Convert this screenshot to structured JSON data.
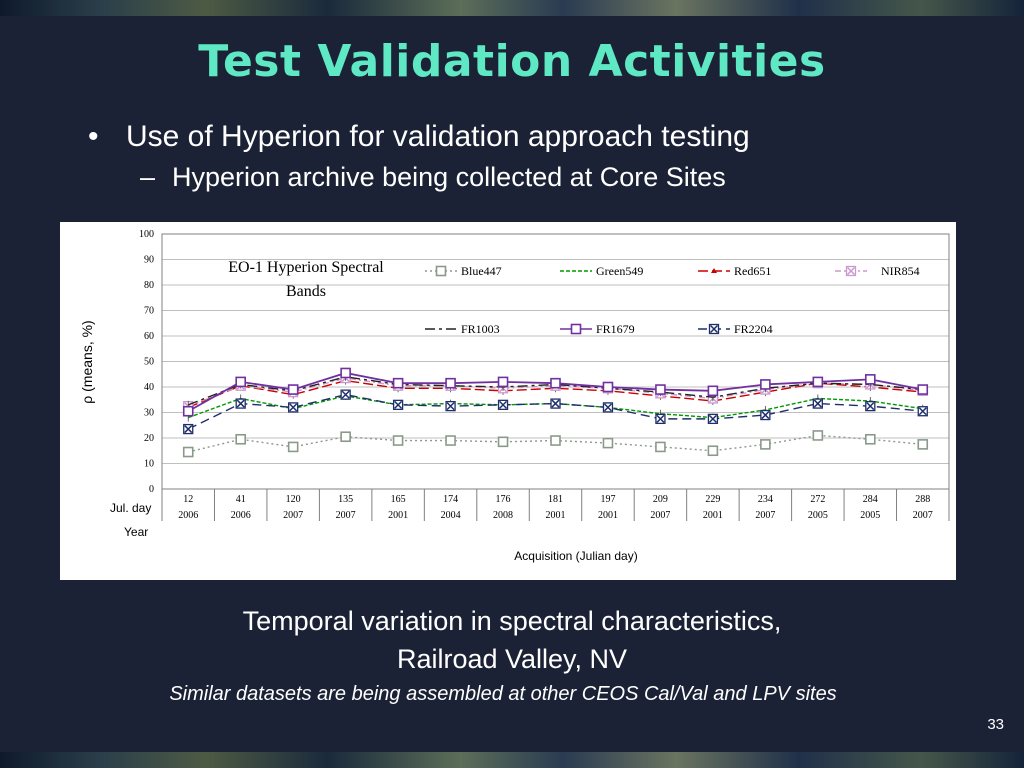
{
  "slide": {
    "title": "Test Validation Activities",
    "bullet1": "Use of Hyperion for validation approach testing",
    "bullet2": "Hyperion archive being collected at Core Sites",
    "caption_line1": "Temporal variation in spectral characteristics,",
    "caption_line2": "Railroad Valley, NV",
    "note": "Similar datasets are being assembled at other CEOS Cal/Val and LPV sites",
    "page_number": "33"
  },
  "chart_data": {
    "type": "line",
    "title": "EO-1 Hyperion Spectral Bands",
    "ylabel": "ρ (means, %)",
    "xlabel": "Acquisition (Julian day)",
    "row_label_day": "Jul. day",
    "row_label_year": "Year",
    "ylim": [
      0,
      100
    ],
    "yticks": [
      0,
      10,
      20,
      30,
      40,
      50,
      60,
      70,
      80,
      90,
      100
    ],
    "grid": true,
    "legend": "top inside plot",
    "categories": [
      "12",
      "41",
      "120",
      "135",
      "165",
      "174",
      "176",
      "181",
      "197",
      "209",
      "229",
      "234",
      "272",
      "284",
      "288"
    ],
    "years": [
      "2006",
      "2006",
      "2007",
      "2007",
      "2001",
      "2004",
      "2008",
      "2001",
      "2001",
      "2007",
      "2001",
      "2007",
      "2005",
      "2005",
      "2007"
    ],
    "series": [
      {
        "name": "Blue447",
        "color": "#8a9a8a",
        "dash": "2,3",
        "marker": "square",
        "values": [
          14.5,
          19.5,
          16.5,
          20.5,
          19,
          19,
          18.5,
          19,
          18,
          16.5,
          15,
          17.5,
          21,
          19.5,
          17.5
        ]
      },
      {
        "name": "Green549",
        "color": "#009900",
        "dash": "4,2",
        "marker": "none",
        "values": [
          28,
          35.5,
          31.5,
          36.5,
          33,
          33.5,
          33,
          33.5,
          32,
          29.5,
          28,
          31,
          35.5,
          34.5,
          31.5
        ]
      },
      {
        "name": "Red651",
        "color": "#cc0000",
        "dash": "10,4",
        "marker": "triangle",
        "values": [
          32,
          40.5,
          37,
          42.5,
          39.5,
          39.5,
          38.5,
          39.5,
          38.5,
          36.5,
          34.5,
          38,
          41.5,
          40,
          38
        ]
      },
      {
        "name": "NIR854",
        "color": "#cc99cc",
        "dash": "6,3,2,3",
        "marker": "x",
        "values": [
          32.5,
          40.5,
          38,
          43.5,
          40.5,
          40.5,
          39.5,
          40.5,
          39.5,
          37.5,
          35.5,
          39,
          41.5,
          41,
          38.5
        ]
      },
      {
        "name": "FR1003",
        "color": "#222222",
        "dash": "10,4,3,4",
        "marker": "none",
        "values": [
          33,
          41,
          38.5,
          44,
          41,
          40.5,
          40,
          41,
          39.5,
          38,
          36,
          39.5,
          41.5,
          41,
          39
        ]
      },
      {
        "name": "FR1679",
        "color": "#7030a0",
        "dash": "",
        "marker": "square",
        "values": [
          30.5,
          42,
          39,
          45.5,
          41.5,
          41.5,
          42,
          41.5,
          40,
          39,
          38.5,
          41,
          42,
          43,
          39
        ]
      },
      {
        "name": "FR2204",
        "color": "#1f2f6a",
        "dash": "9,5",
        "marker": "x",
        "values": [
          23.5,
          33.5,
          32,
          37,
          33,
          32.5,
          33,
          33.5,
          32,
          27.5,
          27.5,
          29,
          33.5,
          32.5,
          30.5
        ]
      }
    ]
  }
}
